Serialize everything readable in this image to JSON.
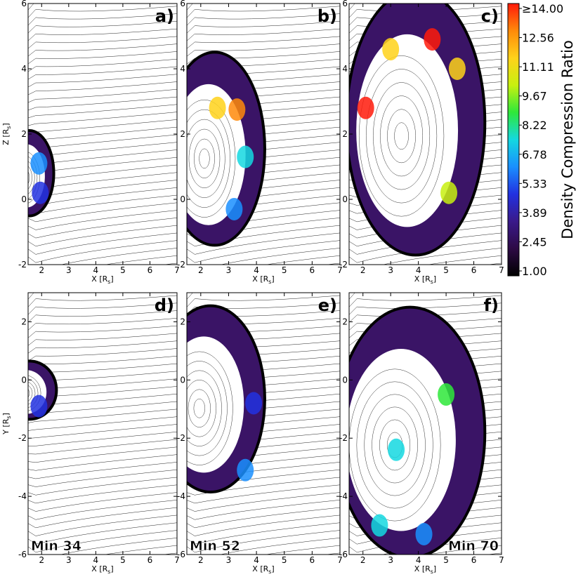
{
  "chart_data": {
    "type": "heatmap",
    "colorbar": {
      "title": "Density Compression Ratio",
      "ticks": [
        "1.00",
        "2.45",
        "3.89",
        "5.33",
        "6.78",
        "8.22",
        "9.67",
        "11.11",
        "12.56",
        "≥14.00"
      ],
      "range": [
        1.0,
        14.0
      ],
      "colors": [
        "#000000",
        "#2d0a45",
        "#3a1a8a",
        "#2231e0",
        "#1a8fff",
        "#14d8e0",
        "#2ee83a",
        "#c8f010",
        "#ffd21a",
        "#ff8a0a",
        "#ff1a0a"
      ]
    },
    "panels": [
      {
        "label": "a)",
        "plane": "x-z",
        "xlabel": "X [R",
        "xlabel_sub": "s",
        "ylabel": "Z [R",
        "ylabel_sub": "s",
        "xlim": [
          1.5,
          7
        ],
        "ylim": [
          -2,
          6
        ],
        "xticks": [
          "2",
          "3",
          "4",
          "5",
          "6",
          "7"
        ],
        "yticks": [
          "-2",
          "0",
          "2",
          "4",
          "6"
        ],
        "time": "",
        "front": {
          "cx": 1.55,
          "cy": 0.8,
          "rx": 0.95,
          "ry": 1.35
        },
        "hot": [
          {
            "x": 1.9,
            "y": 1.1,
            "v": 6.5
          },
          {
            "x": 1.95,
            "y": 0.2,
            "v": 5.0
          }
        ]
      },
      {
        "label": "b)",
        "plane": "x-z",
        "xlabel": "X [R",
        "xlabel_sub": "s",
        "ylabel": "",
        "ylabel_sub": "",
        "xlim": [
          1.5,
          7
        ],
        "ylim": [
          -2,
          6
        ],
        "xticks": [
          "2",
          "3",
          "4",
          "5",
          "6",
          "7"
        ],
        "yticks": [
          "-2",
          "0",
          "2",
          "4",
          "6"
        ],
        "time": "",
        "front": {
          "cx": 2.5,
          "cy": 1.55,
          "rx": 1.85,
          "ry": 3.0
        },
        "hot": [
          {
            "x": 2.6,
            "y": 2.8,
            "v": 11.0
          },
          {
            "x": 3.3,
            "y": 2.75,
            "v": 13.0
          },
          {
            "x": 3.6,
            "y": 1.3,
            "v": 7.0
          },
          {
            "x": 3.2,
            "y": -0.3,
            "v": 6.0
          }
        ]
      },
      {
        "label": "c)",
        "plane": "x-z",
        "xlabel": "X [R",
        "xlabel_sub": "s",
        "ylabel": "",
        "ylabel_sub": "",
        "xlim": [
          1.5,
          7
        ],
        "ylim": [
          -2,
          6
        ],
        "xticks": [
          "2",
          "3",
          "4",
          "5",
          "6",
          "7"
        ],
        "yticks": [
          "-2",
          "0",
          "2",
          "4",
          "6"
        ],
        "time": "",
        "front": {
          "cx": 3.9,
          "cy": 2.35,
          "rx": 2.55,
          "ry": 4.1
        },
        "hot": [
          {
            "x": 2.1,
            "y": 2.8,
            "v": 13.5
          },
          {
            "x": 3.0,
            "y": 4.6,
            "v": 11.0
          },
          {
            "x": 4.5,
            "y": 4.9,
            "v": 14.0
          },
          {
            "x": 5.4,
            "y": 4.0,
            "v": 12.0
          },
          {
            "x": 5.1,
            "y": 0.2,
            "v": 10.0
          }
        ]
      },
      {
        "label": "d)",
        "plane": "x-y",
        "xlabel": "X [R",
        "xlabel_sub": "s",
        "ylabel": "Y [R",
        "ylabel_sub": "s",
        "xlim": [
          1.5,
          7
        ],
        "ylim": [
          -6,
          3
        ],
        "xticks": [
          "2",
          "3",
          "4",
          "5",
          "6",
          "7"
        ],
        "yticks": [
          "-6",
          "-4",
          "-2",
          "0",
          "2"
        ],
        "time": "Min 34",
        "front": {
          "cx": 1.55,
          "cy": -0.35,
          "rx": 1.05,
          "ry": 1.05
        },
        "hot": [
          {
            "x": 1.9,
            "y": -0.9,
            "v": 4.5
          }
        ]
      },
      {
        "label": "e)",
        "plane": "x-y",
        "xlabel": "X [R",
        "xlabel_sub": "s",
        "ylabel": "",
        "ylabel_sub": "",
        "xlim": [
          1.5,
          7
        ],
        "ylim": [
          -6,
          3
        ],
        "xticks": [
          "2",
          "3",
          "4",
          "5",
          "6",
          "7"
        ],
        "yticks": [
          "-6",
          "-4",
          "-2",
          "0",
          "2"
        ],
        "time": "Min 52",
        "front": {
          "cx": 2.35,
          "cy": -0.65,
          "rx": 2.0,
          "ry": 3.25
        },
        "hot": [
          {
            "x": 3.6,
            "y": -3.1,
            "v": 6.0
          },
          {
            "x": 3.9,
            "y": -0.8,
            "v": 4.5
          }
        ]
      },
      {
        "label": "f)",
        "plane": "x-y",
        "xlabel": "X [R",
        "xlabel_sub": "s",
        "ylabel": "",
        "ylabel_sub": "",
        "xlim": [
          1.5,
          7
        ],
        "ylim": [
          -6,
          3
        ],
        "xticks": [
          "2",
          "3",
          "4",
          "5",
          "6",
          "7"
        ],
        "yticks": [
          "-6",
          "-4",
          "-2",
          "0",
          "2"
        ],
        "time": "Min 70",
        "front": {
          "cx": 3.7,
          "cy": -1.8,
          "rx": 2.75,
          "ry": 4.35
        },
        "hot": [
          {
            "x": 5.0,
            "y": -0.5,
            "v": 8.5
          },
          {
            "x": 3.2,
            "y": -2.4,
            "v": 8.0
          },
          {
            "x": 2.6,
            "y": -5.0,
            "v": 7.0
          },
          {
            "x": 4.2,
            "y": -5.3,
            "v": 6.5
          }
        ]
      }
    ]
  }
}
